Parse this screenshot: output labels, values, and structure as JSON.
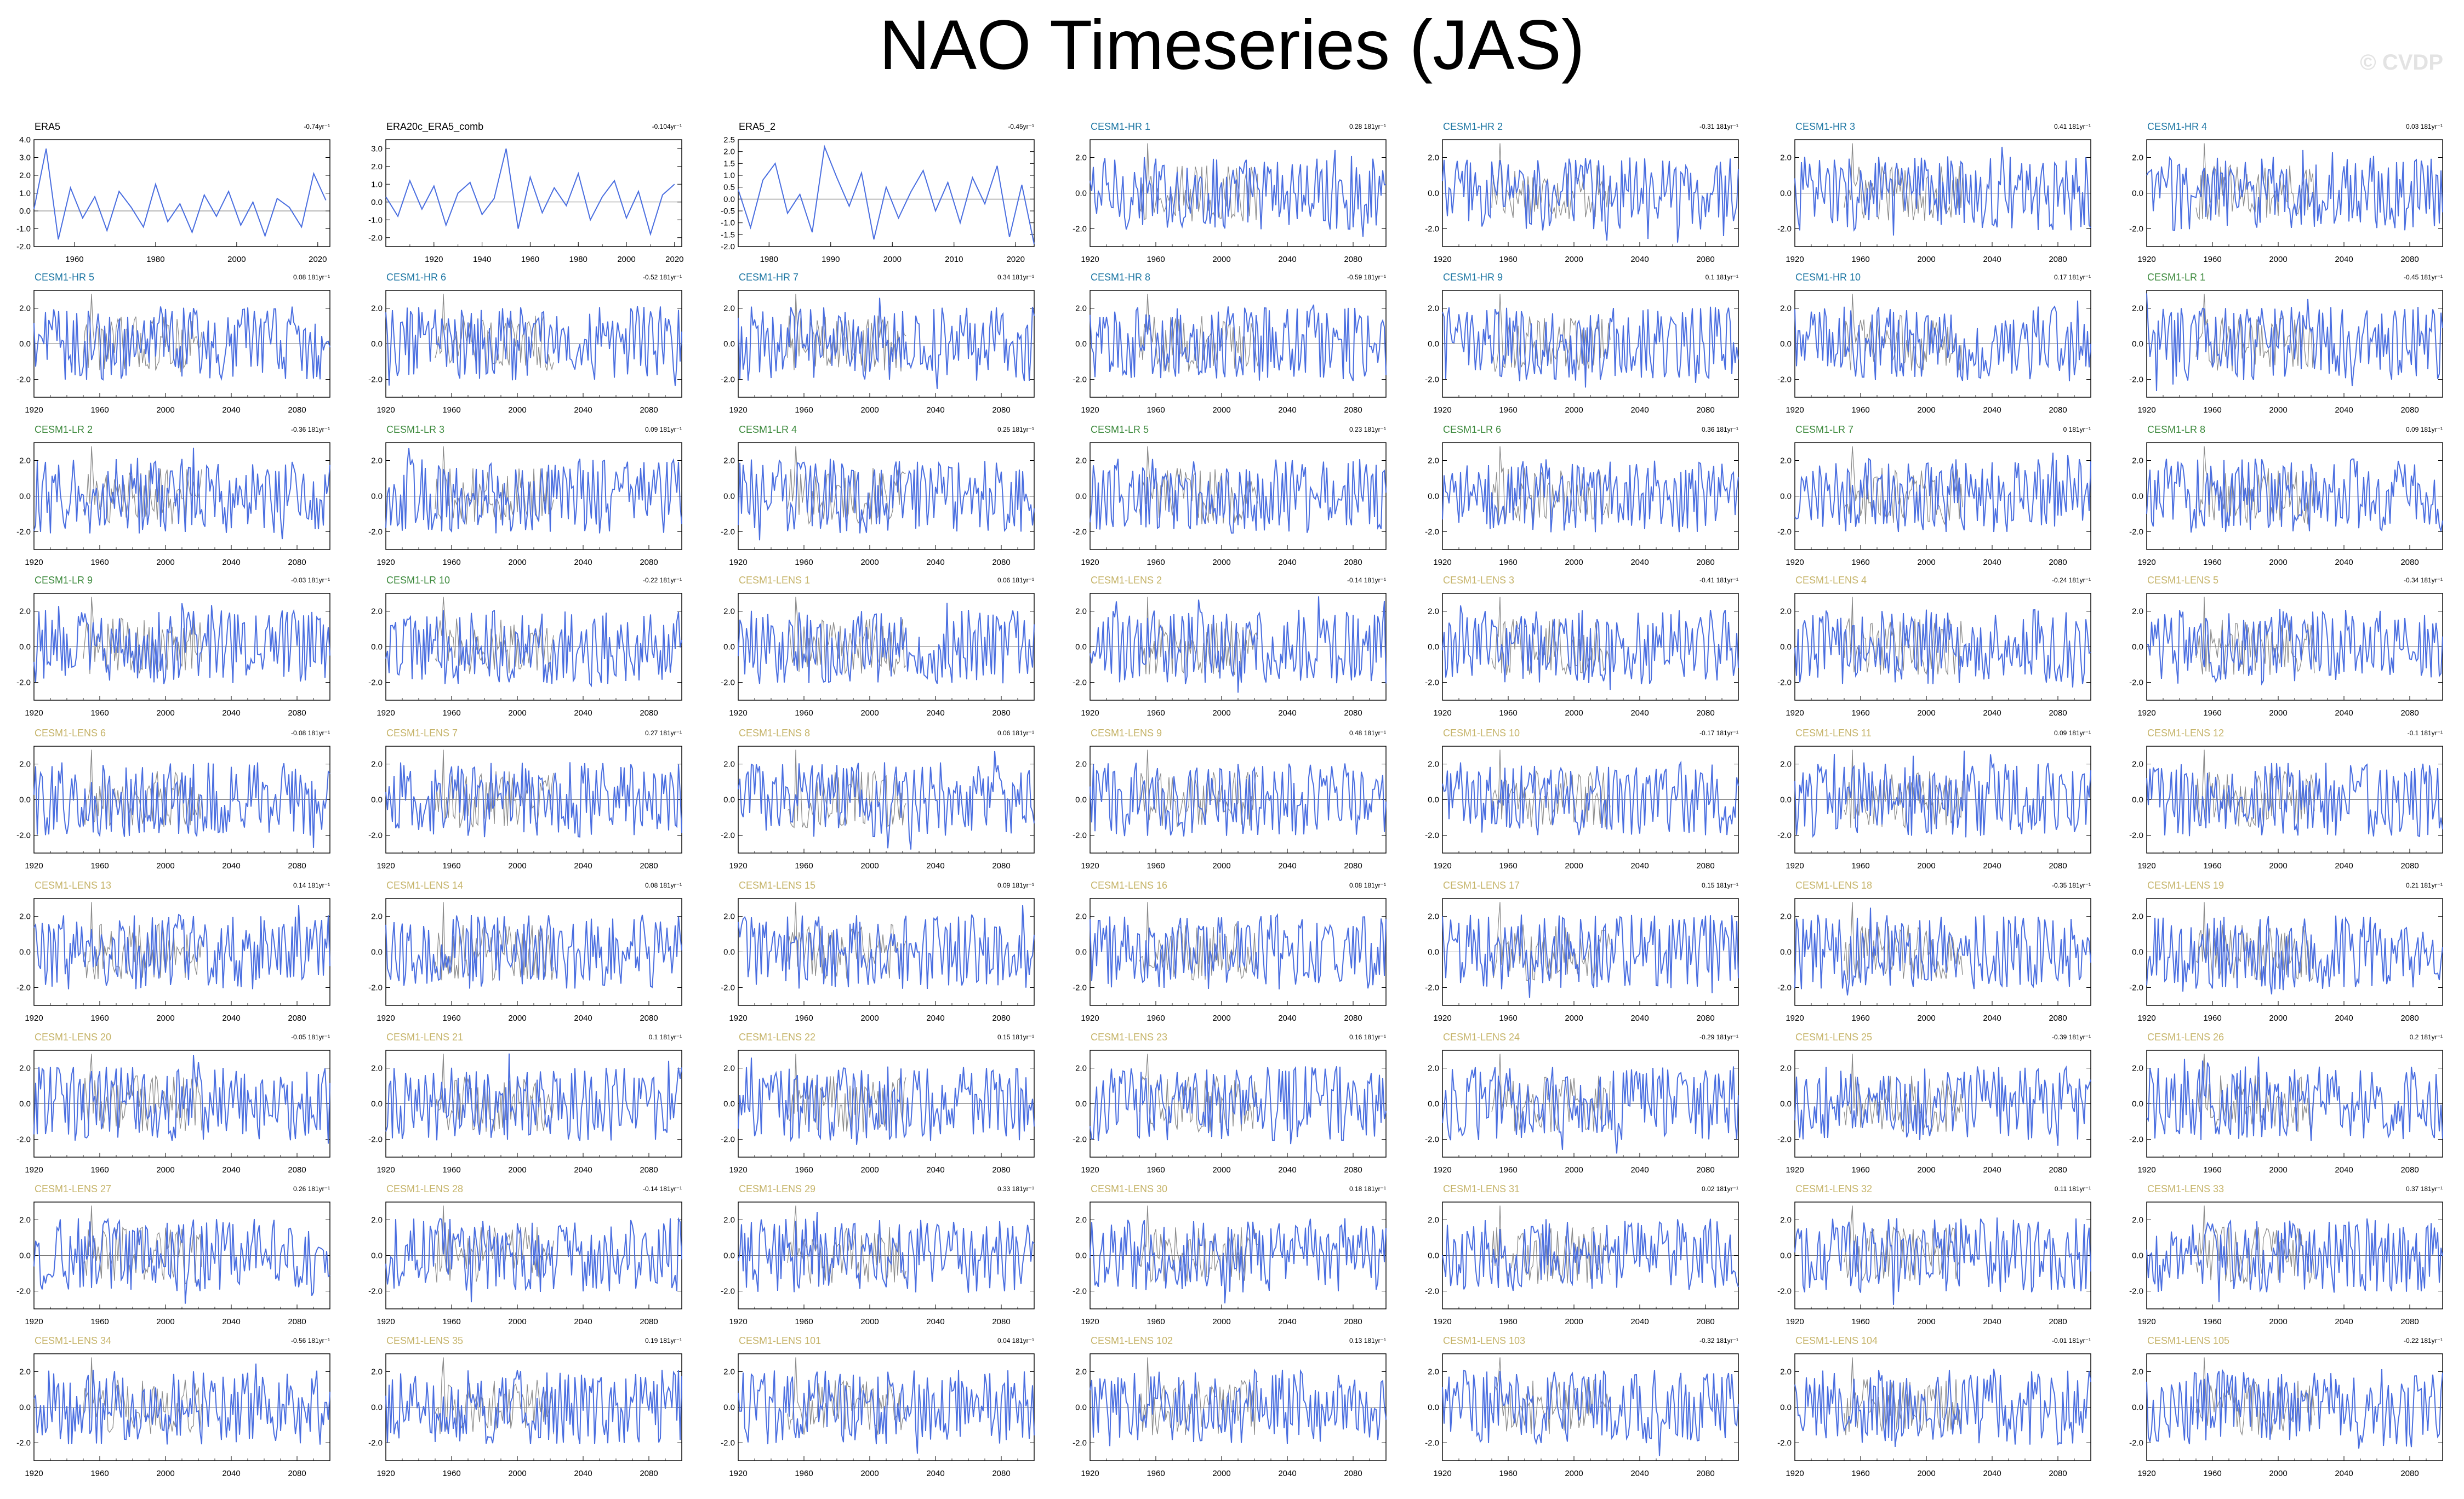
{
  "title": "NAO Timeseries (JAS)",
  "watermark": "© CVDP",
  "colors": {
    "series_line": "#4a6ee0",
    "observed_overlay": "#8c8c8c",
    "obs_label": "#000000",
    "hr_label": "#1f77a4",
    "lr_label": "#3d8a3d",
    "lens_label": "#c6b46a"
  },
  "chart_data": [
    {
      "type": "line",
      "title": "ERA5",
      "trend": "-0.74yr⁻¹",
      "xticks": [
        1960,
        1980,
        2000,
        2020
      ],
      "xlim": [
        1950,
        2023
      ],
      "yticks": [
        "4.0",
        "3.0",
        "2.0",
        "1.0",
        "0.0",
        "-1.0",
        "-2.0"
      ],
      "ylim": [
        -2,
        4
      ],
      "group": "obs",
      "series": [
        {
          "x": [
            1950,
            1953,
            1956,
            1959,
            1962,
            1965,
            1968,
            1971,
            1974,
            1977,
            1980,
            1983,
            1986,
            1989,
            1992,
            1995,
            1998,
            2001,
            2004,
            2007,
            2010,
            2013,
            2016,
            2019,
            2022
          ],
          "y": [
            0.1,
            3.5,
            -1.6,
            1.3,
            -0.4,
            0.8,
            -1.1,
            1.1,
            0.2,
            -0.9,
            1.5,
            -0.6,
            0.4,
            -1.2,
            0.9,
            -0.3,
            1.1,
            -0.8,
            0.5,
            -1.4,
            0.7,
            0.2,
            -0.9,
            2.1,
            0.6
          ]
        }
      ]
    },
    {
      "type": "line",
      "title": "ERA20c_ERA5_comb",
      "trend": "-0.104yr⁻¹",
      "xticks": [
        1920,
        1940,
        1960,
        1980,
        2000,
        2020
      ],
      "xlim": [
        1900,
        2023
      ],
      "yticks": [
        "3.0",
        "2.0",
        "1.0",
        "0.0",
        "-1.0",
        "-2.0"
      ],
      "ylim": [
        -2.5,
        3.5
      ],
      "group": "obs",
      "series": [
        {
          "x": [
            1900,
            1905,
            1910,
            1915,
            1920,
            1925,
            1930,
            1935,
            1940,
            1945,
            1950,
            1955,
            1960,
            1965,
            1970,
            1975,
            1980,
            1985,
            1990,
            1995,
            2000,
            2005,
            2010,
            2015,
            2020
          ],
          "y": [
            0.3,
            -0.8,
            1.2,
            -0.4,
            0.9,
            -1.3,
            0.5,
            1.1,
            -0.7,
            0.2,
            3.0,
            -1.5,
            1.4,
            -0.6,
            0.8,
            -0.2,
            1.6,
            -1.0,
            0.3,
            1.2,
            -0.9,
            0.6,
            -1.8,
            0.4,
            1.0
          ]
        }
      ]
    },
    {
      "type": "line",
      "title": "ERA5_2",
      "trend": "-0.45yr⁻¹",
      "xticks": [
        1980,
        1990,
        2000,
        2010,
        2020
      ],
      "xlim": [
        1975,
        2023
      ],
      "yticks": [
        "2.5",
        "2.0",
        "1.5",
        "1.0",
        "0.5",
        "0.0",
        "-0.5",
        "-1.0",
        "-1.5",
        "-2.0"
      ],
      "ylim": [
        -2,
        2.5
      ],
      "group": "obs",
      "series": [
        {
          "x": [
            1975,
            1977,
            1979,
            1981,
            1983,
            1985,
            1987,
            1989,
            1991,
            1993,
            1995,
            1997,
            1999,
            2001,
            2003,
            2005,
            2007,
            2009,
            2011,
            2013,
            2015,
            2017,
            2019,
            2021,
            2023
          ],
          "y": [
            0.4,
            -1.2,
            0.8,
            1.5,
            -0.6,
            0.2,
            -1.4,
            2.2,
            0.9,
            -0.3,
            1.1,
            -1.7,
            0.5,
            -0.8,
            0.3,
            1.2,
            -0.5,
            0.7,
            -1.0,
            0.9,
            -0.2,
            1.4,
            -1.6,
            0.6,
            -1.9
          ]
        }
      ]
    }
  ],
  "model_panels": [
    [
      "CESM1-HR 1",
      "0.28 181yr⁻¹",
      "hr"
    ],
    [
      "CESM1-HR 2",
      "-0.31 181yr⁻¹",
      "hr"
    ],
    [
      "CESM1-HR 3",
      "0.41 181yr⁻¹",
      "hr"
    ],
    [
      "CESM1-HR 4",
      "0.03 181yr⁻¹",
      "hr"
    ],
    [
      "CESM1-HR 5",
      "0.08 181yr⁻¹",
      "hr"
    ],
    [
      "CESM1-HR 6",
      "-0.52 181yr⁻¹",
      "hr"
    ],
    [
      "CESM1-HR 7",
      "0.34 181yr⁻¹",
      "hr"
    ],
    [
      "CESM1-HR 8",
      "-0.59 181yr⁻¹",
      "hr"
    ],
    [
      "CESM1-HR 9",
      "0.1 181yr⁻¹",
      "hr"
    ],
    [
      "CESM1-HR 10",
      "0.17 181yr⁻¹",
      "hr"
    ],
    [
      "CESM1-LR 1",
      "-0.45 181yr⁻¹",
      "lr"
    ],
    [
      "CESM1-LR 2",
      "-0.36 181yr⁻¹",
      "lr"
    ],
    [
      "CESM1-LR 3",
      "0.09 181yr⁻¹",
      "lr"
    ],
    [
      "CESM1-LR 4",
      "0.25 181yr⁻¹",
      "lr"
    ],
    [
      "CESM1-LR 5",
      "0.23 181yr⁻¹",
      "lr"
    ],
    [
      "CESM1-LR 6",
      "0.36 181yr⁻¹",
      "lr"
    ],
    [
      "CESM1-LR 7",
      "0 181yr⁻¹",
      "lr"
    ],
    [
      "CESM1-LR 8",
      "0.09 181yr⁻¹",
      "lr"
    ],
    [
      "CESM1-LR 9",
      "-0.03 181yr⁻¹",
      "lr"
    ],
    [
      "CESM1-LR 10",
      "-0.22 181yr⁻¹",
      "lr"
    ],
    [
      "CESM1-LENS 1",
      "0.06 181yr⁻¹",
      "lens"
    ],
    [
      "CESM1-LENS 2",
      "-0.14 181yr⁻¹",
      "lens"
    ],
    [
      "CESM1-LENS 3",
      "-0.41 181yr⁻¹",
      "lens"
    ],
    [
      "CESM1-LENS 4",
      "-0.24 181yr⁻¹",
      "lens"
    ],
    [
      "CESM1-LENS 5",
      "-0.34 181yr⁻¹",
      "lens"
    ],
    [
      "CESM1-LENS 6",
      "-0.08 181yr⁻¹",
      "lens"
    ],
    [
      "CESM1-LENS 7",
      "0.27 181yr⁻¹",
      "lens"
    ],
    [
      "CESM1-LENS 8",
      "0.06 181yr⁻¹",
      "lens"
    ],
    [
      "CESM1-LENS 9",
      "0.48 181yr⁻¹",
      "lens"
    ],
    [
      "CESM1-LENS 10",
      "-0.17 181yr⁻¹",
      "lens"
    ],
    [
      "CESM1-LENS 11",
      "0.09 181yr⁻¹",
      "lens"
    ],
    [
      "CESM1-LENS 12",
      "-0.1 181yr⁻¹",
      "lens"
    ],
    [
      "CESM1-LENS 13",
      "0.14 181yr⁻¹",
      "lens"
    ],
    [
      "CESM1-LENS 14",
      "0.08 181yr⁻¹",
      "lens"
    ],
    [
      "CESM1-LENS 15",
      "0.09 181yr⁻¹",
      "lens"
    ],
    [
      "CESM1-LENS 16",
      "0.08 181yr⁻¹",
      "lens"
    ],
    [
      "CESM1-LENS 17",
      "0.15 181yr⁻¹",
      "lens"
    ],
    [
      "CESM1-LENS 18",
      "-0.35 181yr⁻¹",
      "lens"
    ],
    [
      "CESM1-LENS 19",
      "0.21 181yr⁻¹",
      "lens"
    ],
    [
      "CESM1-LENS 20",
      "-0.05 181yr⁻¹",
      "lens"
    ],
    [
      "CESM1-LENS 21",
      "0.1 181yr⁻¹",
      "lens"
    ],
    [
      "CESM1-LENS 22",
      "0.15 181yr⁻¹",
      "lens"
    ],
    [
      "CESM1-LENS 23",
      "0.16 181yr⁻¹",
      "lens"
    ],
    [
      "CESM1-LENS 24",
      "-0.29 181yr⁻¹",
      "lens"
    ],
    [
      "CESM1-LENS 25",
      "-0.39 181yr⁻¹",
      "lens"
    ],
    [
      "CESM1-LENS 26",
      "0.2 181yr⁻¹",
      "lens"
    ],
    [
      "CESM1-LENS 27",
      "0.26 181yr⁻¹",
      "lens"
    ],
    [
      "CESM1-LENS 28",
      "-0.14 181yr⁻¹",
      "lens"
    ],
    [
      "CESM1-LENS 29",
      "0.33 181yr⁻¹",
      "lens"
    ],
    [
      "CESM1-LENS 30",
      "0.18 181yr⁻¹",
      "lens"
    ],
    [
      "CESM1-LENS 31",
      "0.02 181yr⁻¹",
      "lens"
    ],
    [
      "CESM1-LENS 32",
      "0.11 181yr⁻¹",
      "lens"
    ],
    [
      "CESM1-LENS 33",
      "0.37 181yr⁻¹",
      "lens"
    ],
    [
      "CESM1-LENS 34",
      "-0.56 181yr⁻¹",
      "lens"
    ],
    [
      "CESM1-LENS 35",
      "0.19 181yr⁻¹",
      "lens"
    ],
    [
      "CESM1-LENS 101",
      "0.04 181yr⁻¹",
      "lens"
    ],
    [
      "CESM1-LENS 102",
      "0.13 181yr⁻¹",
      "lens"
    ],
    [
      "CESM1-LENS 103",
      "-0.32 181yr⁻¹",
      "lens"
    ],
    [
      "CESM1-LENS 104",
      "-0.01 181yr⁻¹",
      "lens"
    ],
    [
      "CESM1-LENS 105",
      "-0.22 181yr⁻¹",
      "lens"
    ]
  ],
  "model_axes": {
    "xticks": [
      1920,
      1960,
      2000,
      2040,
      2080
    ],
    "xlim": [
      1920,
      2100
    ],
    "yticks": [
      "2.0",
      "0.0",
      "-2.0"
    ],
    "ylim": [
      -3,
      3
    ]
  }
}
